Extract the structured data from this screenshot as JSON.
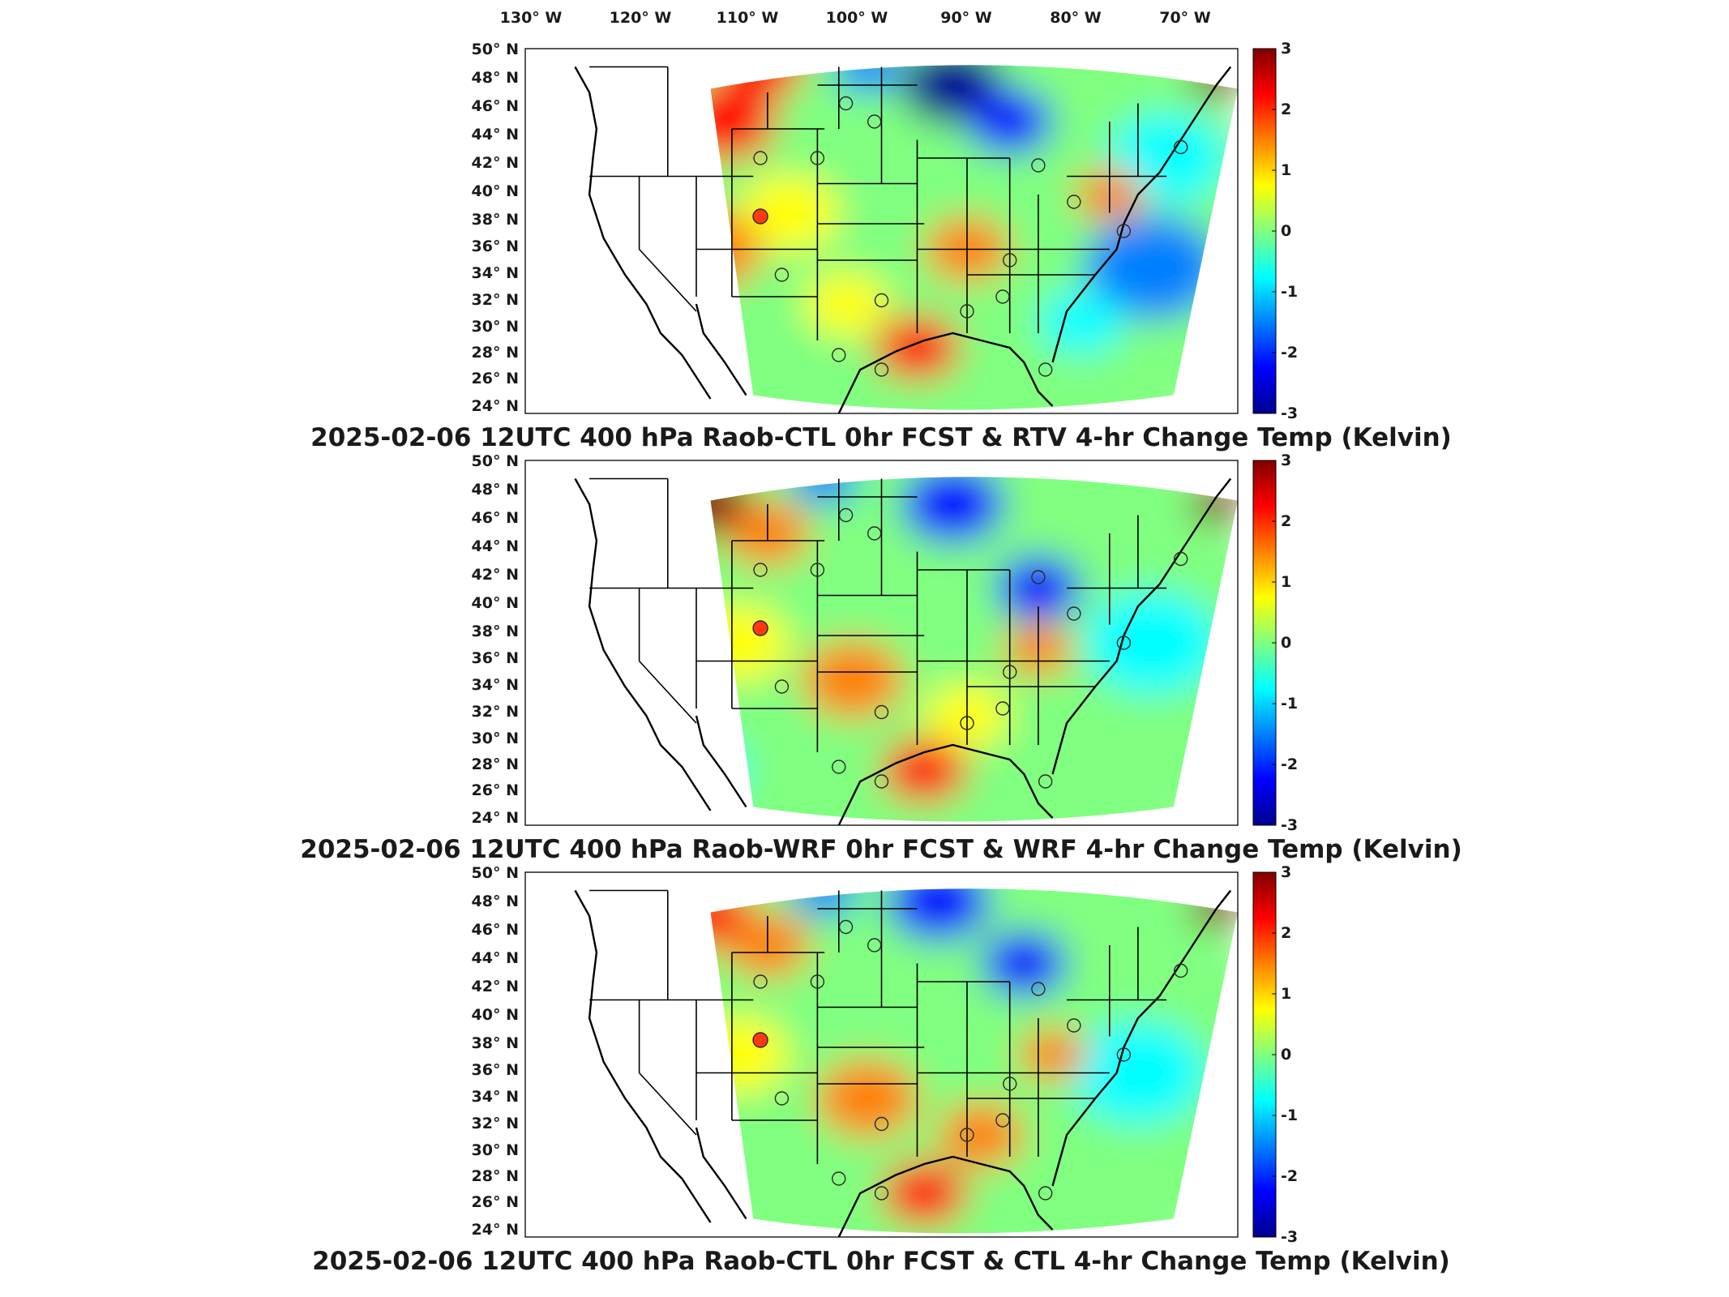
{
  "figure": {
    "lon_axis_labels": [
      "130° W",
      "120° W",
      "110° W",
      "100° W",
      "90° W",
      "80° W",
      "70° W"
    ],
    "lat_axis_labels": [
      "50° N",
      "48° N",
      "46° N",
      "44° N",
      "42° N",
      "40° N",
      "38° N",
      "36° N",
      "34° N",
      "32° N",
      "30° N",
      "28° N",
      "26° N",
      "24° N"
    ],
    "colorbar": {
      "range": [
        -3,
        3
      ],
      "tick_labels": [
        "3",
        "2",
        "1",
        "0",
        "-1",
        "-2",
        "-3"
      ],
      "colormap": "jet"
    },
    "panels": [
      {
        "id": "top",
        "title": "2025-02-06 12UTC 400 hPa Raob-CTL 0hr FCST & RTV 4-hr Change Temp (Kelvin)"
      },
      {
        "id": "middle",
        "title": "2025-02-06 12UTC 400 hPa Raob-WRF 0hr FCST & WRF 4-hr Change Temp (Kelvin)"
      },
      {
        "id": "bottom",
        "title": "2025-02-06 12UTC 400 hPa Raob-CTL 0hr FCST & CTL 4-hr Change Temp (Kelvin)"
      }
    ]
  },
  "colors": {
    "jet_stops": [
      "#00008f",
      "#0000ff",
      "#0080ff",
      "#00ffff",
      "#80ff80",
      "#ffff00",
      "#ff8000",
      "#ff0000",
      "#800000"
    ],
    "border": "#000000",
    "gap": "#ffffff"
  }
}
